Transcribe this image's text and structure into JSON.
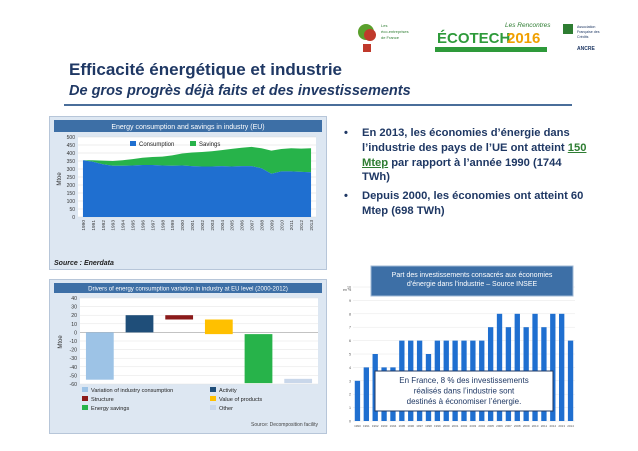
{
  "header": {
    "title": "Efficacité énergétique et industrie",
    "subtitle": "De gros progrès déjà faits et des investissements",
    "logos": {
      "partner_line1": "Les",
      "partner_line2": "éco-entreprises",
      "partner_line3": "de France",
      "event_line1": "Les Rencontres",
      "event_name": "ÉCOTECH",
      "event_year": "2016",
      "right_line1": "Association",
      "right_line2": "Française des",
      "right_line3": "Crédits",
      "right_org": "ANCRE"
    }
  },
  "bullets": [
    {
      "before": "En 2013, les économies d’énergie dans l’industrie des pays de l’UE ont atteint ",
      "highlight": "150 Mtep",
      "after": " par rapport à l’année 1990 (1744 TWh)"
    },
    {
      "before": "Depuis 2000, les économies ont atteint 60 Mtep (698 TWh)",
      "highlight": "",
      "after": ""
    }
  ],
  "chart_data": [
    {
      "type": "area",
      "title": "Energy consumption and savings in industry (EU)",
      "ylabel": "Mtoe",
      "ylim": [
        0,
        500
      ],
      "yticks": [
        0,
        50,
        100,
        150,
        200,
        250,
        300,
        350,
        400,
        450,
        500
      ],
      "x": [
        "1990",
        "1991",
        "1992",
        "1993",
        "1994",
        "1995",
        "1996",
        "1997",
        "1998",
        "1999",
        "2000",
        "2001",
        "2002",
        "2003",
        "2004",
        "2005",
        "2006",
        "2007",
        "2008",
        "2009",
        "2010",
        "2011",
        "2012",
        "2013"
      ],
      "series": [
        {
          "name": "Consumption",
          "color": "#1f6fd0",
          "values": [
            355,
            345,
            330,
            320,
            320,
            322,
            325,
            325,
            322,
            320,
            322,
            318,
            316,
            316,
            318,
            316,
            318,
            318,
            305,
            270,
            285,
            285,
            282,
            280
          ]
        },
        {
          "name": "Savings",
          "color": "#27b34a",
          "values": [
            0,
            10,
            22,
            30,
            35,
            40,
            45,
            50,
            55,
            65,
            75,
            85,
            90,
            95,
            100,
            110,
            115,
            120,
            125,
            145,
            140,
            145,
            145,
            150
          ]
        }
      ],
      "legend_position": "top",
      "source": "Source : Enerdata",
      "grid": true
    },
    {
      "type": "bar",
      "title": "Drivers of energy consumption variation in industry at EU level (2000-2012)",
      "ylabel": "Mtoe",
      "ylim": [
        -60,
        40
      ],
      "yticks": [
        40,
        30,
        20,
        10,
        0,
        -10,
        -20,
        -30,
        -40,
        -50,
        -60
      ],
      "categories": [
        "Variation of industry consumption",
        "Activity",
        "Structure",
        "Value of products",
        "Energy savings",
        "Other"
      ],
      "values": [
        -55,
        20,
        -5,
        -17,
        -57,
        5
      ],
      "colors": [
        "#9dc3e6",
        "#1f4e79",
        "#8b1a1a",
        "#ffc000",
        "#27b34a",
        "#c9d7ea"
      ],
      "legend_position": "bottom",
      "source": "Source: Decomposition facility",
      "grid": true
    },
    {
      "type": "bar",
      "title": "Part des investissements consacrés aux économies d’énergie dans l’industrie – Source INSEE",
      "ylabel": "en %",
      "ylim": [
        0,
        10
      ],
      "yticks": [
        0,
        1,
        2,
        3,
        4,
        5,
        6,
        7,
        8,
        9,
        10
      ],
      "categories": [
        "1990",
        "1991",
        "1992",
        "1993",
        "1994",
        "1995",
        "1996",
        "1997",
        "1998",
        "1999",
        "2000",
        "2001",
        "2002",
        "2003",
        "2004",
        "2005",
        "2006",
        "2007",
        "2008",
        "2009",
        "2010",
        "2011",
        "2012",
        "2013",
        "2014"
      ],
      "values": [
        3,
        4,
        5,
        4,
        4,
        6,
        6,
        6,
        5,
        6,
        6,
        6,
        6,
        6,
        6,
        7,
        8,
        7,
        8,
        7,
        8,
        7,
        8,
        8,
        6
      ],
      "color": "#1f6fd0",
      "annotation": "En France, 8 %  des investissements réalisés dans l’industrie sont destinés à économiser l’énergie.",
      "grid": true
    }
  ]
}
